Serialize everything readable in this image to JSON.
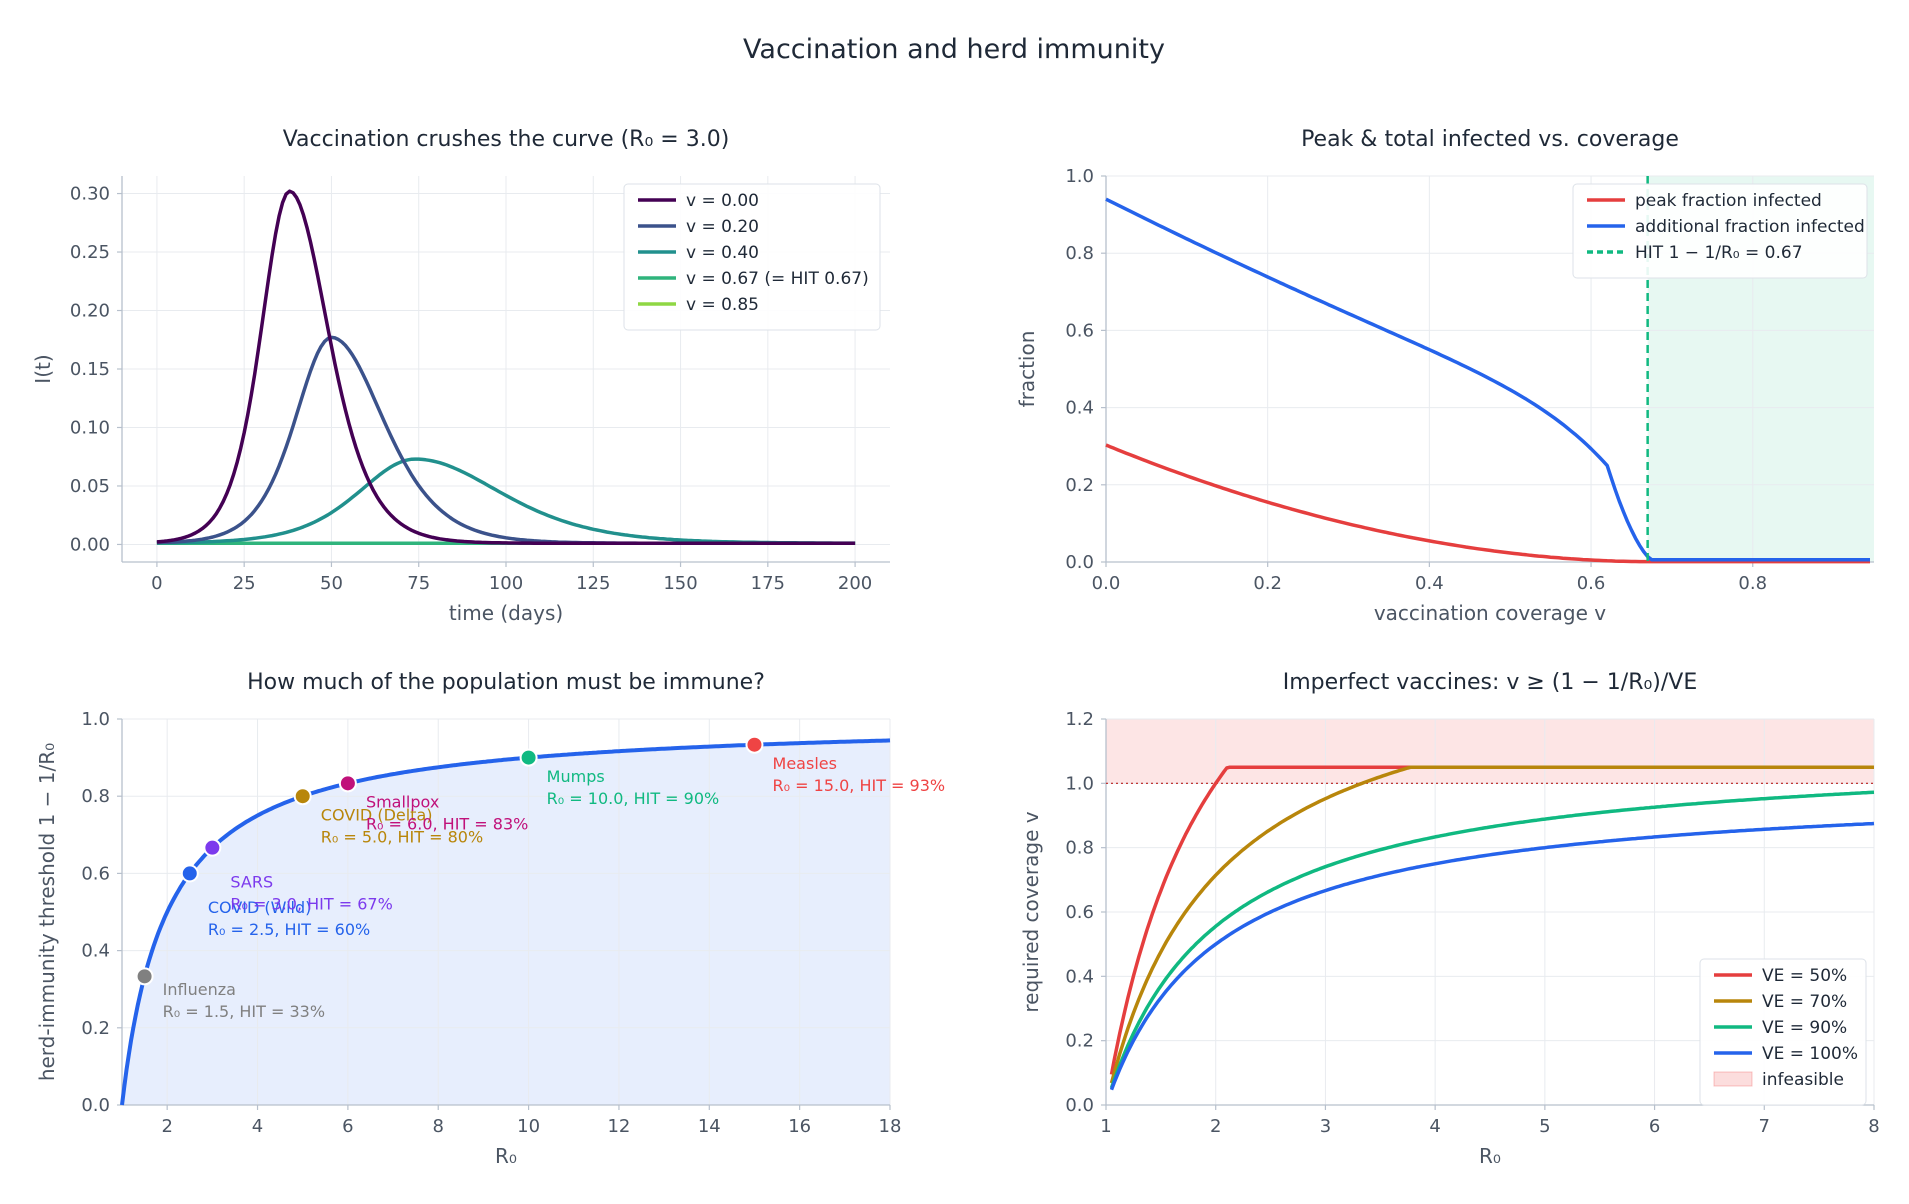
{
  "figure": {
    "title": "Vaccination and herd immunity"
  },
  "chart_data": [
    {
      "id": "curve",
      "type": "line",
      "title": "Vaccination crushes the curve  (R₀ = 3.0)",
      "xlabel": "time  (days)",
      "ylabel": "I(t)",
      "xlim": [
        -10,
        210
      ],
      "ylim": [
        -0.015,
        0.315
      ],
      "xticks": [
        0,
        25,
        50,
        75,
        100,
        125,
        150,
        175,
        200
      ],
      "yticks": [
        0.0,
        0.05,
        0.1,
        0.15,
        0.2,
        0.25,
        0.3
      ],
      "grid": true,
      "legend": "top-right",
      "series": [
        {
          "name": "v = 0.00",
          "color": "#440154",
          "peak_t": 38,
          "peak_i": 0.301,
          "w_rise": 11,
          "w_fall": 15,
          "base": 0.001
        },
        {
          "name": "v = 0.20",
          "color": "#3b528b",
          "peak_t": 50,
          "peak_i": 0.176,
          "w_rise": 14,
          "w_fall": 20,
          "base": 0.001
        },
        {
          "name": "v = 0.40",
          "color": "#21908d",
          "peak_t": 74,
          "peak_i": 0.072,
          "w_rise": 22,
          "w_fall": 33,
          "base": 0.001
        },
        {
          "name": "v = 0.67  (= HIT  0.67)",
          "color": "#2fb47c",
          "peak_t": 0,
          "peak_i": 0.0,
          "w_rise": 1,
          "w_fall": 1,
          "base": 0.001
        },
        {
          "name": "v = 0.85",
          "color": "#8fd744",
          "peak_t": 0,
          "peak_i": 0.0,
          "w_rise": 1,
          "w_fall": 1,
          "base": 0.001
        }
      ]
    },
    {
      "id": "coverage",
      "type": "line",
      "title": "Peak  &  total infected  vs.  coverage",
      "xlabel": "vaccination coverage  v",
      "ylabel": "fraction",
      "xlim": [
        0.0,
        0.95
      ],
      "ylim": [
        0.0,
        1.0
      ],
      "xticks": [
        0.0,
        0.2,
        0.4,
        0.6,
        0.8
      ],
      "yticks": [
        0.0,
        0.2,
        0.4,
        0.6,
        0.8,
        1.0
      ],
      "grid": true,
      "legend": "top-right",
      "hit": 0.67,
      "series": [
        {
          "name": "peak fraction infected",
          "color": "#e53e3e",
          "fn": "peak"
        },
        {
          "name": "additional fraction infected",
          "color": "#2563eb",
          "fn": "total"
        }
      ],
      "vline_label": "HIT  1 − 1/R₀ = 0.67",
      "vline_color": "#10b981"
    },
    {
      "id": "hit",
      "type": "line",
      "title": "How much of the population must be immune?",
      "xlabel": "R₀",
      "ylabel": "herd-immunity threshold  1 − 1/R₀",
      "xlim": [
        1,
        18
      ],
      "ylim": [
        0.0,
        1.0
      ],
      "xticks": [
        2,
        4,
        6,
        8,
        10,
        12,
        14,
        16,
        18
      ],
      "yticks": [
        0.0,
        0.2,
        0.4,
        0.6,
        0.8,
        1.0
      ],
      "grid": true,
      "line_color": "#2563eb",
      "diseases": [
        {
          "name": "Influenza",
          "r0": 1.5,
          "label": "R₀ = 1.5, HIT = 33%",
          "color": "#808080",
          "dx": 0.4,
          "dy": -0.1
        },
        {
          "name": "COVID (Wild)",
          "r0": 2.5,
          "label": "R₀ = 2.5, HIT = 60%",
          "color": "#2563eb",
          "dx": 0.4,
          "dy": -0.155
        },
        {
          "name": "SARS",
          "r0": 3.0,
          "label": "R₀ = 3.0, HIT = 67%",
          "color": "#7c3aed",
          "dx": 0.4,
          "dy": -0.155
        },
        {
          "name": "COVID (Delta)",
          "r0": 5.0,
          "label": "R₀ = 5.0, HIT = 80%",
          "color": "#b8860b",
          "dx": 0.4,
          "dy": -0.115
        },
        {
          "name": "Smallpox",
          "r0": 6.0,
          "label": "R₀ = 6.0, HIT = 83%",
          "color": "#c0117a",
          "dx": 0.4,
          "dy": -0.115
        },
        {
          "name": "Mumps",
          "r0": 10.0,
          "label": "R₀ = 10.0, HIT = 90%",
          "color": "#10b981",
          "dx": 0.4,
          "dy": -0.115
        },
        {
          "name": "Measles",
          "r0": 15.0,
          "label": "R₀ = 15.0, HIT = 93%",
          "color": "#ef4444",
          "dx": 0.4,
          "dy": -0.115
        }
      ]
    },
    {
      "id": "imperfect",
      "type": "line",
      "title": "Imperfect vaccines:  v ≥ (1 − 1/R₀)/VE",
      "xlabel": "R₀",
      "ylabel": "required coverage  v",
      "xlim": [
        1,
        8
      ],
      "ylim": [
        0.0,
        1.2
      ],
      "xticks": [
        1,
        2,
        3,
        4,
        5,
        6,
        7,
        8
      ],
      "yticks": [
        0.0,
        0.2,
        0.4,
        0.6,
        0.8,
        1.0,
        1.2
      ],
      "grid": true,
      "legend": "bottom-right",
      "cap": 1.05,
      "series": [
        {
          "name": "VE = 50%",
          "ve": 0.5,
          "color": "#e53e3e"
        },
        {
          "name": "VE = 70%",
          "ve": 0.7,
          "color": "#b8860b"
        },
        {
          "name": "VE = 90%",
          "ve": 0.9,
          "color": "#10b981"
        },
        {
          "name": "VE = 100%",
          "ve": 1.0,
          "color": "#2563eb"
        }
      ],
      "infeasible_label": "infeasible"
    }
  ]
}
